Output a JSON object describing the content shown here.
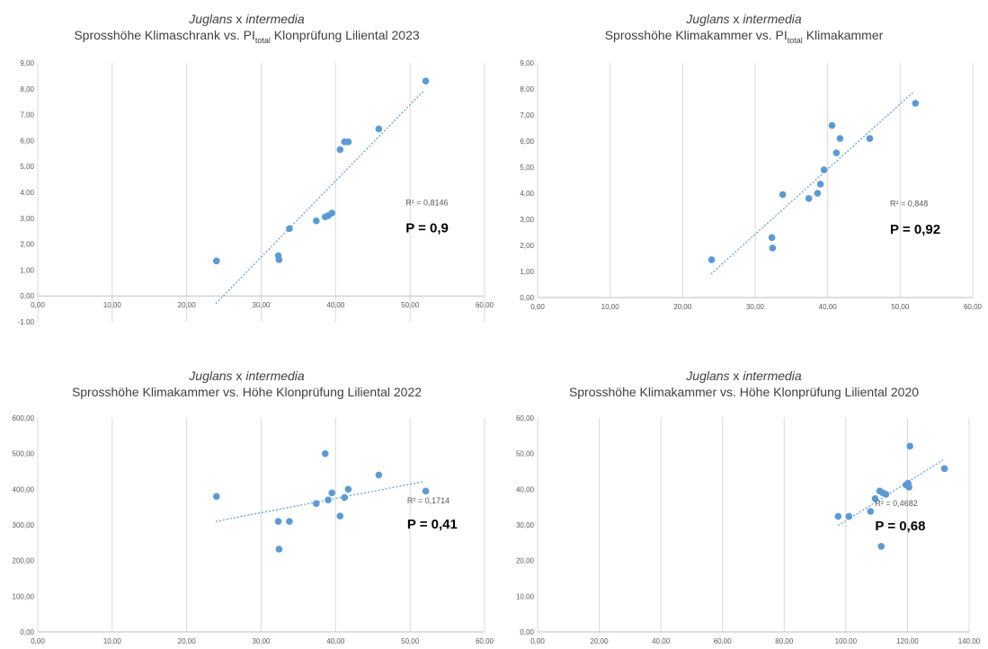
{
  "chart_data": [
    {
      "type": "scatter",
      "title_line1_italic": "Juglans",
      "title_line1_rest": " x ",
      "title_line1_italic2": "intermedia",
      "title_line2_pre": "Sprosshöhe Klimaschrank vs. PI",
      "title_line2_sub": "total",
      "title_line2_post": " Klonprüfung Liliental 2023",
      "xlim": [
        0,
        60
      ],
      "ylim": [
        -1,
        9
      ],
      "x_ticks": [
        "0,00",
        "10,00",
        "20,00",
        "30,00",
        "40,00",
        "50,00",
        "60,00"
      ],
      "y_ticks": [
        "-1,00",
        "0,00",
        "1,00",
        "2,00",
        "3,00",
        "4,00",
        "5,00",
        "6,00",
        "7,00",
        "8,00",
        "9,00"
      ],
      "x_tick_values": [
        0,
        10,
        20,
        30,
        40,
        50,
        60
      ],
      "y_tick_values": [
        -1,
        0,
        1,
        2,
        3,
        4,
        5,
        6,
        7,
        8,
        9
      ],
      "grid": "vertical",
      "points": [
        {
          "x": 24.0,
          "y": 1.35
        },
        {
          "x": 32.3,
          "y": 1.55
        },
        {
          "x": 32.4,
          "y": 1.4
        },
        {
          "x": 33.8,
          "y": 2.6
        },
        {
          "x": 37.4,
          "y": 2.9
        },
        {
          "x": 38.6,
          "y": 3.05
        },
        {
          "x": 39.0,
          "y": 3.1
        },
        {
          "x": 39.5,
          "y": 3.2
        },
        {
          "x": 40.6,
          "y": 5.65
        },
        {
          "x": 41.2,
          "y": 5.95
        },
        {
          "x": 41.7,
          "y": 5.95
        },
        {
          "x": 45.8,
          "y": 6.45
        },
        {
          "x": 52.1,
          "y": 8.3
        }
      ],
      "trendline": {
        "x1": 23.9,
        "y1": -0.3,
        "x2": 51.9,
        "y2": 7.95
      },
      "r2": "R² = 0,8146",
      "r2_pos": {
        "x": 49.4,
        "y": 3.5
      },
      "p_label": "P = 0,9",
      "p_pos": {
        "x": 49.4,
        "y": 2.45
      },
      "marker_color": "#5b9bd5"
    },
    {
      "type": "scatter",
      "title_line1_italic": "Juglans",
      "title_line1_rest": " x ",
      "title_line1_italic2": "intermedia",
      "title_line2_pre": "Sprosshöhe Klimakammer vs. PI",
      "title_line2_sub": "total",
      "title_line2_post": " Klimakammer",
      "xlim": [
        0,
        60
      ],
      "ylim": [
        0,
        9
      ],
      "x_ticks": [
        "0,00",
        "10,00",
        "20,00",
        "30,00",
        "40,00",
        "50,00",
        "60,00"
      ],
      "y_ticks": [
        "0,00",
        "1,00",
        "2,00",
        "3,00",
        "4,00",
        "5,00",
        "6,00",
        "7,00",
        "8,00",
        "9,00"
      ],
      "x_tick_values": [
        0,
        10,
        20,
        30,
        40,
        50,
        60
      ],
      "y_tick_values": [
        0,
        1,
        2,
        3,
        4,
        5,
        6,
        7,
        8,
        9
      ],
      "grid": "vertical",
      "points": [
        {
          "x": 24.0,
          "y": 1.45
        },
        {
          "x": 32.3,
          "y": 2.3
        },
        {
          "x": 32.4,
          "y": 1.9
        },
        {
          "x": 33.8,
          "y": 3.95
        },
        {
          "x": 37.4,
          "y": 3.8
        },
        {
          "x": 38.6,
          "y": 4.0
        },
        {
          "x": 39.0,
          "y": 4.35
        },
        {
          "x": 39.5,
          "y": 4.9
        },
        {
          "x": 40.6,
          "y": 6.6
        },
        {
          "x": 41.2,
          "y": 5.55
        },
        {
          "x": 41.7,
          "y": 6.1
        },
        {
          "x": 45.8,
          "y": 6.1
        },
        {
          "x": 52.1,
          "y": 7.45
        }
      ],
      "trendline": {
        "x1": 23.9,
        "y1": 0.9,
        "x2": 51.9,
        "y2": 7.9
      },
      "r2": "R² = 0,848",
      "r2_pos": {
        "x": 48.6,
        "y": 3.5
      },
      "p_label": "P = 0,92",
      "p_pos": {
        "x": 48.6,
        "y": 2.45
      },
      "marker_color": "#5b9bd5"
    },
    {
      "type": "scatter",
      "title_line1_italic": "Juglans",
      "title_line1_rest": " x ",
      "title_line1_italic2": "intermedia",
      "title_line2_pre": "Sprosshöhe Klimakammer vs. Höhe Klonprüfung Liliental 2022",
      "title_line2_sub": "",
      "title_line2_post": "",
      "xlim": [
        0,
        60
      ],
      "ylim": [
        0,
        600
      ],
      "x_ticks": [
        "0,00",
        "10,00",
        "20,00",
        "30,00",
        "40,00",
        "50,00",
        "60,00"
      ],
      "y_ticks": [
        "0,00",
        "100,00",
        "200,00",
        "300,00",
        "400,00",
        "500,00",
        "600,00"
      ],
      "x_tick_values": [
        0,
        10,
        20,
        30,
        40,
        50,
        60
      ],
      "y_tick_values": [
        0,
        100,
        200,
        300,
        400,
        500,
        600
      ],
      "grid": "vertical",
      "points": [
        {
          "x": 24.0,
          "y": 380
        },
        {
          "x": 32.3,
          "y": 310
        },
        {
          "x": 32.4,
          "y": 232
        },
        {
          "x": 33.8,
          "y": 310
        },
        {
          "x": 37.4,
          "y": 360
        },
        {
          "x": 38.6,
          "y": 500
        },
        {
          "x": 39.0,
          "y": 370
        },
        {
          "x": 39.5,
          "y": 390
        },
        {
          "x": 40.6,
          "y": 325
        },
        {
          "x": 41.2,
          "y": 377
        },
        {
          "x": 41.7,
          "y": 400
        },
        {
          "x": 45.8,
          "y": 440
        },
        {
          "x": 52.1,
          "y": 395
        }
      ],
      "trendline": {
        "x1": 23.9,
        "y1": 310,
        "x2": 51.9,
        "y2": 422
      },
      "r2": "R² = 0,1714",
      "r2_pos": {
        "x": 49.6,
        "y": 360
      },
      "p_label": "P = 0,41",
      "p_pos": {
        "x": 49.6,
        "y": 290
      },
      "marker_color": "#5b9bd5"
    },
    {
      "type": "scatter",
      "title_line1_italic": "Juglans",
      "title_line1_rest": " x ",
      "title_line1_italic2": "intermedia",
      "title_line2_pre": "Sprosshöhe Klimakammer vs. Höhe Klonprüfung Liliental 2020",
      "title_line2_sub": "",
      "title_line2_post": "",
      "xlim": [
        0,
        140
      ],
      "ylim": [
        0,
        60
      ],
      "x_ticks": [
        "0,00",
        "20,00",
        "40,00",
        "60,00",
        "80,00",
        "100,00",
        "120,00",
        "140,00"
      ],
      "y_ticks": [
        "0,00",
        "10,00",
        "20,00",
        "30,00",
        "40,00",
        "50,00",
        "60,00"
      ],
      "x_tick_values": [
        0,
        20,
        40,
        60,
        80,
        100,
        120,
        140
      ],
      "y_tick_values": [
        0,
        10,
        20,
        30,
        40,
        50,
        60
      ],
      "grid": "vertical",
      "points": [
        {
          "x": 97.5,
          "y": 32.4
        },
        {
          "x": 101,
          "y": 32.4
        },
        {
          "x": 108,
          "y": 33.8
        },
        {
          "x": 109.5,
          "y": 37.4
        },
        {
          "x": 111,
          "y": 39.5
        },
        {
          "x": 112,
          "y": 39.0
        },
        {
          "x": 113,
          "y": 38.6
        },
        {
          "x": 111.5,
          "y": 24.0
        },
        {
          "x": 119.5,
          "y": 41.2
        },
        {
          "x": 120.2,
          "y": 41.7
        },
        {
          "x": 120.5,
          "y": 40.6
        },
        {
          "x": 120.8,
          "y": 52.1
        },
        {
          "x": 132,
          "y": 45.8
        }
      ],
      "trendline": {
        "x1": 97.5,
        "y1": 29.8,
        "x2": 131.5,
        "y2": 48.2
      },
      "r2": "R² = 0,4682",
      "r2_pos": {
        "x": 109.5,
        "y": 35.3
      },
      "p_label": "P = 0,68",
      "p_pos": {
        "x": 109.5,
        "y": 28.5
      },
      "marker_color": "#5b9bd5"
    }
  ]
}
